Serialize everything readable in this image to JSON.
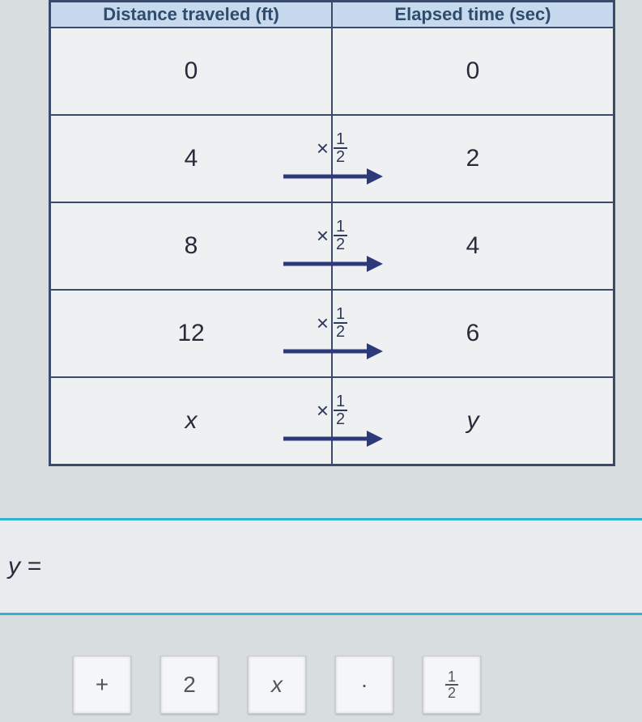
{
  "table": {
    "headers": {
      "left": "Distance traveled (ft)",
      "right": "Elapsed time (sec)"
    },
    "rows": [
      {
        "left": "0",
        "right": "0",
        "arrow": false,
        "right_italic": false
      },
      {
        "left": "4",
        "right": "2",
        "arrow": true,
        "frac_num": "1",
        "frac_den": "2",
        "right_italic": false
      },
      {
        "left": "8",
        "right": "4",
        "arrow": true,
        "frac_num": "1",
        "frac_den": "2",
        "right_italic": false
      },
      {
        "left": "12",
        "right": "6",
        "arrow": true,
        "frac_num": "1",
        "frac_den": "2",
        "right_italic": false
      },
      {
        "left": "x",
        "right": "y",
        "arrow": true,
        "frac_num": "1",
        "frac_den": "2",
        "left_italic": true,
        "right_italic": true
      }
    ],
    "times_symbol": "×",
    "arrow_color": "#2d3a7a",
    "border_color": "#3a4a6b",
    "cell_bg": "#eef0f2",
    "header_bg": "#c7d9ec"
  },
  "input": {
    "prefix": "y ="
  },
  "buttons": [
    {
      "name": "plus-button",
      "label": "+",
      "type": "text"
    },
    {
      "name": "two-button",
      "label": "2",
      "type": "text"
    },
    {
      "name": "x-button",
      "label": "x",
      "type": "text",
      "italic": true
    },
    {
      "name": "dot-button",
      "label": "·",
      "type": "text"
    },
    {
      "name": "half-button",
      "type": "frac",
      "num": "1",
      "den": "2"
    }
  ],
  "colors": {
    "accent_border": "#2fb4c9",
    "page_bg": "#d8dde0",
    "text": "#2a2a3a"
  }
}
